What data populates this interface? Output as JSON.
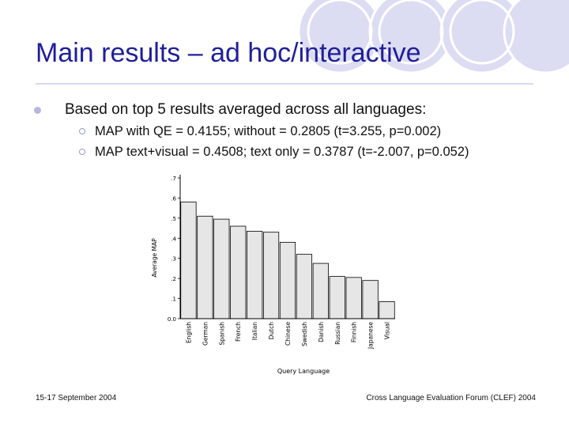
{
  "slide": {
    "title": "Main results – ad hoc/interactive",
    "bullet": "Based on top 5 results averaged across all languages:",
    "sub_bullets": [
      "MAP with QE = 0.4155; without = 0.2805 (t=3.255, p=0.002)",
      "MAP text+visual = 0.4508; text only = 0.3787 (t=-2.007, p=0.052)"
    ],
    "footer_left": "15-17 September 2004",
    "footer_right": "Cross Language Evaluation Forum (CLEF) 2004"
  },
  "colors": {
    "title": "#1f1f99",
    "circle_fill": "#dcdcf2",
    "bar_fill": "#e6e6e6",
    "bar_stroke": "#000000"
  },
  "chart_data": {
    "type": "bar",
    "categories": [
      "English",
      "German",
      "Spanish",
      "French",
      "Italian",
      "Dutch",
      "Chinese",
      "Swedish",
      "Danish",
      "Russian",
      "Finnish",
      "Japanese",
      "Visual"
    ],
    "values": [
      0.58,
      0.51,
      0.495,
      0.46,
      0.435,
      0.43,
      0.38,
      0.32,
      0.275,
      0.21,
      0.205,
      0.19,
      0.085
    ],
    "xlabel": "Query Language",
    "ylabel": "Average MAP",
    "ylim": [
      0,
      0.7
    ],
    "yticks": [
      0,
      0.1,
      0.2,
      0.3,
      0.4,
      0.5,
      0.6,
      0.7
    ],
    "ytick_labels": [
      "0.0",
      ".1",
      ".2",
      ".3",
      ".4",
      ".5",
      ".6",
      ".7"
    ],
    "grid": false
  }
}
